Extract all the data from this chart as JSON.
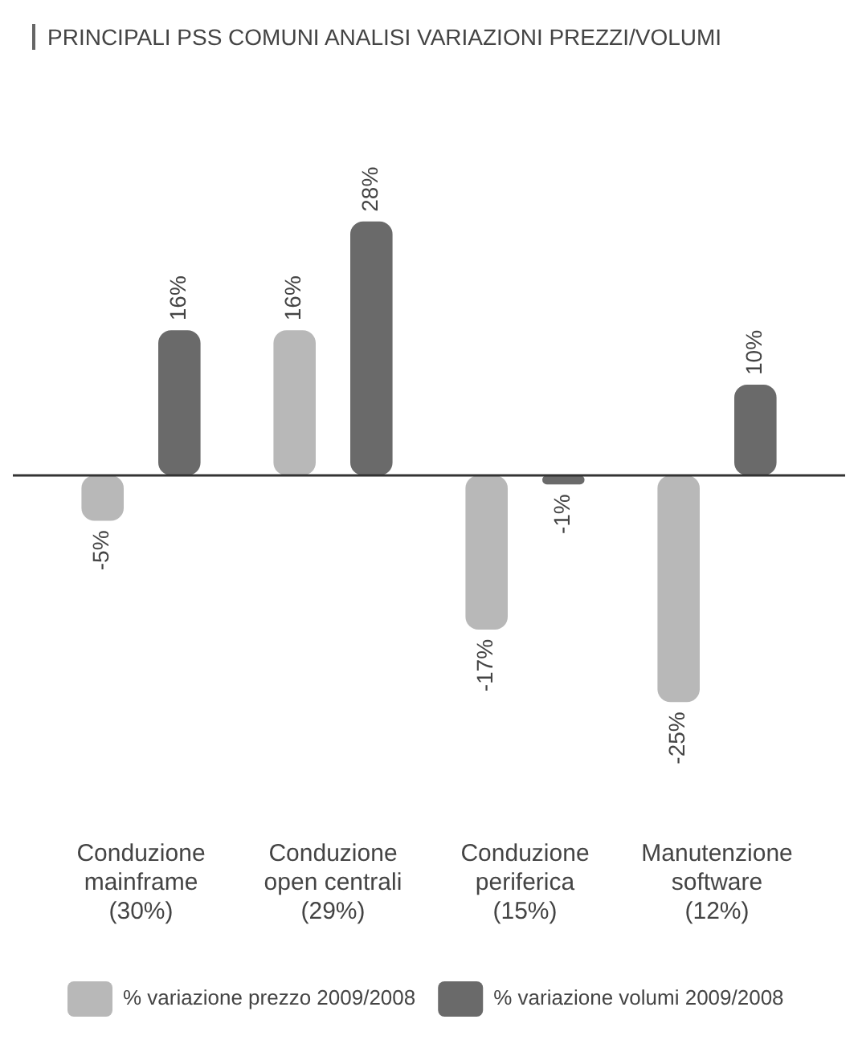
{
  "chart_data": {
    "type": "bar",
    "title": "PRINCIPALI PSS COMUNI ANALISI VARIAZIONI PREZZI/VOLUMI",
    "categories": [
      "Conduzione\nmainframe\n(30%)",
      "Conduzione\nopen centrali\n(29%)",
      "Conduzione\nperiferica\n(15%)",
      "Manutenzione\nsoftware\n(12%)"
    ],
    "series": [
      {
        "name": "% variazione prezzo 2009/2008",
        "color": "#b8b8b8",
        "values": [
          -5,
          16,
          -17,
          -25
        ],
        "value_labels": [
          "-5%",
          "16%",
          "-17%",
          "-25%"
        ]
      },
      {
        "name": "% variazione volumi 2009/2008",
        "color": "#6a6a6a",
        "values": [
          16,
          28,
          -1,
          10
        ],
        "value_labels": [
          "16%",
          "28%",
          "-1%",
          "10%"
        ]
      }
    ],
    "legend": "bottom",
    "grid": false
  }
}
